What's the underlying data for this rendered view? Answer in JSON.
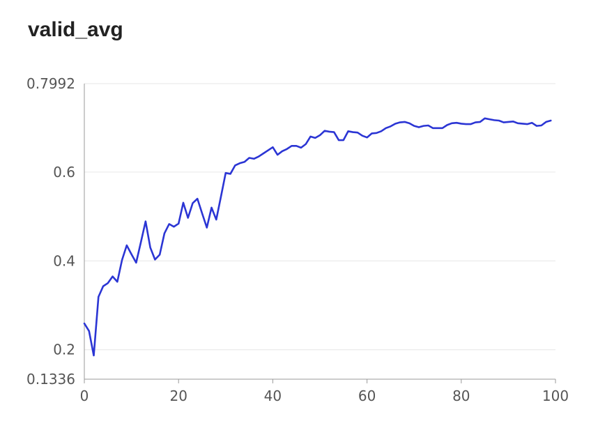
{
  "chart_data": {
    "type": "line",
    "title": "valid_avg",
    "xlabel": "",
    "ylabel": "",
    "xlim": [
      0,
      100
    ],
    "ylim": [
      0.1336,
      0.7992
    ],
    "x_ticks": [
      "0",
      "20",
      "40",
      "60",
      "80",
      "100"
    ],
    "x_tick_values": [
      0,
      20,
      40,
      60,
      80,
      100
    ],
    "y_ticks": [
      "0.1336",
      "0.2",
      "0.4",
      "0.6",
      "0.7992"
    ],
    "y_tick_values": [
      0.1336,
      0.2,
      0.4,
      0.6,
      0.7992
    ],
    "grid": true,
    "colors": {
      "line": "#2b35d4",
      "grid": "#e6e6e6",
      "axis": "#999999"
    },
    "series": [
      {
        "x": [
          0,
          1,
          2,
          3,
          4,
          5,
          6,
          7,
          8,
          9,
          10,
          11,
          12,
          13,
          14,
          15,
          16,
          17,
          18,
          19,
          20,
          21,
          22,
          23,
          24,
          25,
          26,
          27,
          28,
          29,
          30,
          31,
          32,
          33,
          34,
          35,
          36,
          37,
          38,
          39,
          40,
          41,
          42,
          43,
          44,
          45,
          46,
          47,
          48,
          49,
          50,
          51,
          52,
          53,
          54,
          55,
          56,
          57,
          58,
          59,
          60,
          61,
          62,
          63,
          64,
          65,
          66,
          67,
          68,
          69,
          70,
          71,
          72,
          73,
          74,
          75,
          76,
          77,
          78,
          79,
          80,
          81,
          82,
          83,
          84,
          85,
          86,
          87,
          88,
          89,
          90,
          91,
          92,
          93,
          94,
          95,
          96,
          97,
          98,
          99
        ],
        "values": [
          0.259,
          0.242,
          0.187,
          0.319,
          0.343,
          0.35,
          0.365,
          0.353,
          0.402,
          0.435,
          0.415,
          0.396,
          0.442,
          0.489,
          0.43,
          0.403,
          0.414,
          0.462,
          0.483,
          0.477,
          0.484,
          0.531,
          0.497,
          0.53,
          0.54,
          0.507,
          0.475,
          0.52,
          0.493,
          0.545,
          0.598,
          0.596,
          0.615,
          0.62,
          0.623,
          0.632,
          0.63,
          0.635,
          0.642,
          0.649,
          0.656,
          0.639,
          0.647,
          0.652,
          0.659,
          0.659,
          0.655,
          0.663,
          0.68,
          0.677,
          0.683,
          0.693,
          0.691,
          0.69,
          0.672,
          0.672,
          0.692,
          0.69,
          0.689,
          0.682,
          0.678,
          0.687,
          0.688,
          0.692,
          0.699,
          0.703,
          0.709,
          0.712,
          0.713,
          0.71,
          0.704,
          0.701,
          0.704,
          0.705,
          0.699,
          0.699,
          0.699,
          0.706,
          0.71,
          0.711,
          0.709,
          0.708,
          0.708,
          0.712,
          0.713,
          0.721,
          0.719,
          0.717,
          0.716,
          0.712,
          0.713,
          0.714,
          0.71,
          0.709,
          0.708,
          0.711,
          0.704,
          0.705,
          0.713,
          0.716
        ]
      }
    ]
  }
}
